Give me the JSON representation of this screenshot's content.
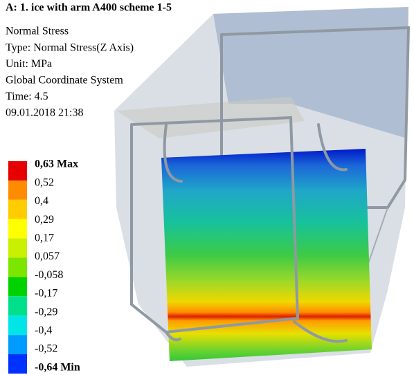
{
  "header": {
    "title": "A: 1. ice with arm A400 scheme 1-5",
    "lines": [
      "Normal Stress",
      "Type: Normal Stress(Z Axis)",
      "Unit: MPa",
      "Global Coordinate System",
      "Time: 4.5",
      "09.01.2018  21:38"
    ]
  },
  "legend": {
    "labels": [
      "0,63 Max",
      "0,52",
      "0,4",
      "0,29",
      "0,17",
      "0,057",
      "-0,058",
      "-0,17",
      "-0,29",
      "-0,4",
      "-0,52",
      "-0,64 Min"
    ],
    "colors": [
      "#e60000",
      "#ff8c00",
      "#ffcc00",
      "#ffff00",
      "#c8f000",
      "#7ce600",
      "#00d200",
      "#00e08c",
      "#00e6e6",
      "#009bff",
      "#0032ff"
    ]
  }
}
